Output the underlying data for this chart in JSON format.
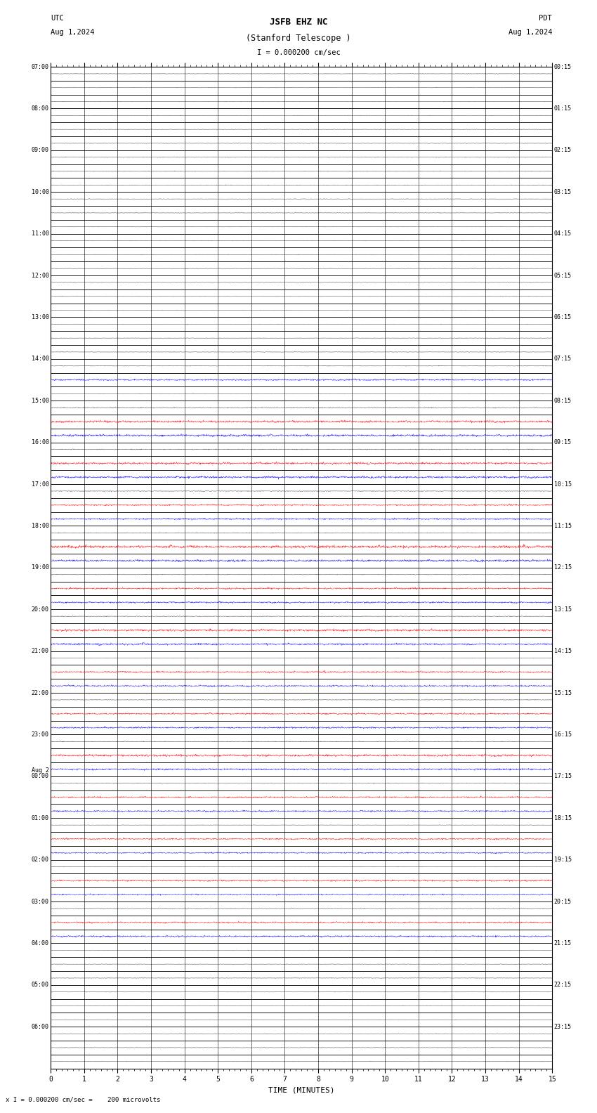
{
  "title_line1": "JSFB EHZ NC",
  "title_line2": "(Stanford Telescope )",
  "scale_label": "I = 0.000200 cm/sec",
  "utc_label": "UTC",
  "utc_date": "Aug 1,2024",
  "pdt_label": "PDT",
  "pdt_date": "Aug 1,2024",
  "bottom_label": "x I = 0.000200 cm/sec =    200 microvolts",
  "xlabel": "TIME (MINUTES)",
  "xmin": 0,
  "xmax": 15,
  "xticks": [
    0,
    1,
    2,
    3,
    4,
    5,
    6,
    7,
    8,
    9,
    10,
    11,
    12,
    13,
    14,
    15
  ],
  "bg_color": "#ffffff",
  "fig_width": 8.5,
  "fig_height": 15.84,
  "num_rows": 72,
  "utc_labels": [
    "07:00",
    "",
    "",
    "08:00",
    "",
    "",
    "09:00",
    "",
    "",
    "10:00",
    "",
    "",
    "11:00",
    "",
    "",
    "12:00",
    "",
    "",
    "13:00",
    "",
    "",
    "14:00",
    "",
    "",
    "15:00",
    "",
    "",
    "16:00",
    "",
    "",
    "17:00",
    "",
    "",
    "18:00",
    "",
    "",
    "19:00",
    "",
    "",
    "20:00",
    "",
    "",
    "21:00",
    "",
    "",
    "22:00",
    "",
    "",
    "23:00",
    "",
    "",
    "Aug 2\n00:00",
    "",
    "",
    "01:00",
    "",
    "",
    "02:00",
    "",
    "",
    "03:00",
    "",
    "",
    "04:00",
    "",
    "",
    "05:00",
    "",
    "",
    "06:00",
    "",
    ""
  ],
  "pdt_labels": [
    "00:15",
    "",
    "",
    "01:15",
    "",
    "",
    "02:15",
    "",
    "",
    "03:15",
    "",
    "",
    "04:15",
    "",
    "",
    "05:15",
    "",
    "",
    "06:15",
    "",
    "",
    "07:15",
    "",
    "",
    "08:15",
    "",
    "",
    "09:15",
    "",
    "",
    "10:15",
    "",
    "",
    "11:15",
    "",
    "",
    "12:15",
    "",
    "",
    "13:15",
    "",
    "",
    "14:15",
    "",
    "",
    "15:15",
    "",
    "",
    "16:15",
    "",
    "",
    "17:15",
    "",
    "",
    "18:15",
    "",
    "",
    "19:15",
    "",
    "",
    "20:15",
    "",
    "",
    "21:15",
    "",
    "",
    "22:15",
    "",
    "",
    "23:15",
    "",
    ""
  ],
  "row_groups": [
    {
      "rows": [
        0,
        1,
        2
      ],
      "colors": [
        "black",
        "black",
        "black"
      ],
      "amp": [
        0.015,
        0.015,
        0.015
      ]
    },
    {
      "rows": [
        3,
        4,
        5
      ],
      "colors": [
        "black",
        "black",
        "black"
      ],
      "amp": [
        0.015,
        0.015,
        0.015
      ]
    },
    {
      "rows": [
        6,
        7,
        8
      ],
      "colors": [
        "black",
        "black",
        "black"
      ],
      "amp": [
        0.02,
        0.02,
        0.02
      ]
    },
    {
      "rows": [
        9,
        10,
        11
      ],
      "colors": [
        "black",
        "black",
        "black"
      ],
      "amp": [
        0.015,
        0.015,
        0.015
      ]
    },
    {
      "rows": [
        12,
        13,
        14
      ],
      "colors": [
        "black",
        "black",
        "black"
      ],
      "amp": [
        0.015,
        0.015,
        0.015
      ]
    },
    {
      "rows": [
        15,
        16,
        17
      ],
      "colors": [
        "black",
        "black",
        "black"
      ],
      "amp": [
        0.015,
        0.015,
        0.015
      ]
    },
    {
      "rows": [
        18,
        19,
        20
      ],
      "colors": [
        "black",
        "black",
        "black"
      ],
      "amp": [
        0.015,
        0.015,
        0.015
      ]
    },
    {
      "rows": [
        21,
        22,
        23
      ],
      "colors": [
        "black",
        "blue",
        "black"
      ],
      "amp": [
        0.02,
        0.06,
        0.015
      ]
    },
    {
      "rows": [
        24,
        25,
        26
      ],
      "colors": [
        "black",
        "red",
        "blue"
      ],
      "amp": [
        0.03,
        0.08,
        0.08
      ]
    },
    {
      "rows": [
        27,
        28,
        29
      ],
      "colors": [
        "black",
        "red",
        "blue"
      ],
      "amp": [
        0.03,
        0.08,
        0.08
      ]
    },
    {
      "rows": [
        30,
        31,
        32
      ],
      "colors": [
        "black",
        "red",
        "blue"
      ],
      "amp": [
        0.025,
        0.06,
        0.06
      ]
    },
    {
      "rows": [
        33,
        34,
        35
      ],
      "colors": [
        "black",
        "red",
        "blue"
      ],
      "amp": [
        0.025,
        0.1,
        0.08
      ]
    },
    {
      "rows": [
        36,
        37,
        38
      ],
      "colors": [
        "black",
        "red",
        "blue"
      ],
      "amp": [
        0.02,
        0.06,
        0.06
      ]
    },
    {
      "rows": [
        39,
        40,
        41
      ],
      "colors": [
        "black",
        "red",
        "blue"
      ],
      "amp": [
        0.025,
        0.08,
        0.07
      ]
    },
    {
      "rows": [
        42,
        43,
        44
      ],
      "colors": [
        "black",
        "red",
        "blue"
      ],
      "amp": [
        0.015,
        0.06,
        0.06
      ]
    },
    {
      "rows": [
        45,
        46,
        47
      ],
      "colors": [
        "black",
        "red",
        "blue"
      ],
      "amp": [
        0.02,
        0.06,
        0.06
      ]
    },
    {
      "rows": [
        48,
        49,
        50
      ],
      "colors": [
        "black",
        "red",
        "blue"
      ],
      "amp": [
        0.025,
        0.08,
        0.07
      ]
    },
    {
      "rows": [
        51,
        52,
        53
      ],
      "colors": [
        "black",
        "red",
        "blue"
      ],
      "amp": [
        0.02,
        0.06,
        0.06
      ]
    },
    {
      "rows": [
        54,
        55,
        56
      ],
      "colors": [
        "black",
        "red",
        "blue"
      ],
      "amp": [
        0.015,
        0.06,
        0.05
      ]
    },
    {
      "rows": [
        57,
        58,
        59
      ],
      "colors": [
        "black",
        "red",
        "blue"
      ],
      "amp": [
        0.015,
        0.06,
        0.05
      ]
    },
    {
      "rows": [
        60,
        61,
        62
      ],
      "colors": [
        "black",
        "red",
        "blue"
      ],
      "amp": [
        0.02,
        0.06,
        0.06
      ]
    },
    {
      "rows": [
        63,
        64,
        65
      ],
      "colors": [
        "black",
        "black",
        "black"
      ],
      "amp": [
        0.015,
        0.015,
        0.015
      ]
    },
    {
      "rows": [
        66,
        67,
        68
      ],
      "colors": [
        "black",
        "black",
        "black"
      ],
      "amp": [
        0.015,
        0.015,
        0.015
      ]
    },
    {
      "rows": [
        69,
        70,
        71
      ],
      "colors": [
        "black",
        "black",
        "black"
      ],
      "amp": [
        0.015,
        0.015,
        0.015
      ]
    }
  ]
}
